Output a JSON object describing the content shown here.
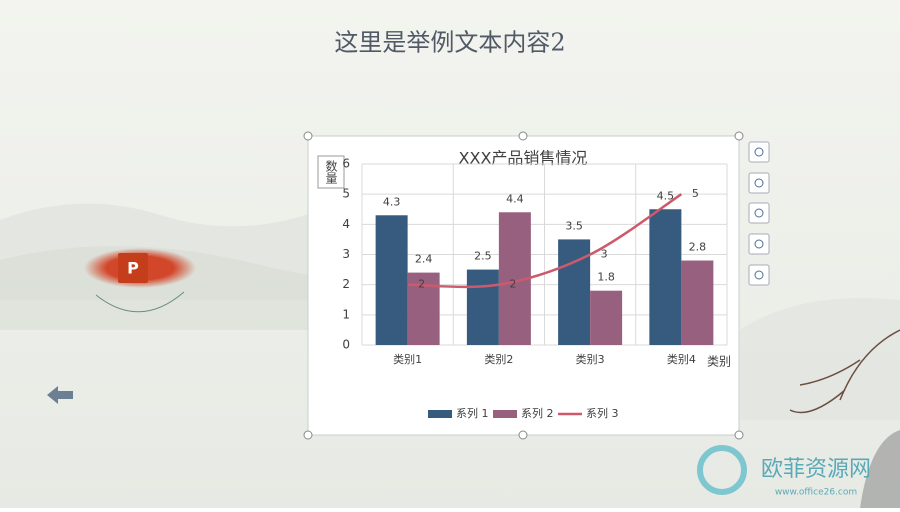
{
  "slide": {
    "title": "这里是举例文本内容2"
  },
  "watermark": {
    "name": "欧菲资源网",
    "url": "www.office26.com"
  },
  "chart_data": {
    "type": "bar",
    "title": "XXX产品销售情况",
    "y_label": "数量",
    "x_label": "类别",
    "categories": [
      "类别1",
      "类别2",
      "类别3",
      "类别4"
    ],
    "series": [
      {
        "name": "系列 1",
        "color": "#375a7f",
        "type": "bar",
        "values": [
          4.3,
          2.5,
          3.5,
          4.5
        ]
      },
      {
        "name": "系列 2",
        "color": "#98607f",
        "type": "bar",
        "values": [
          2.4,
          4.4,
          1.8,
          2.8
        ]
      },
      {
        "name": "系列 3",
        "color": "#cc5a6c",
        "type": "line",
        "values": [
          2,
          2,
          3,
          5
        ]
      }
    ],
    "ylim": [
      0,
      6
    ],
    "yticks": [
      0,
      1,
      2,
      3,
      4,
      5,
      6
    ],
    "grid": true,
    "data_labels": true,
    "legend": "bottom"
  }
}
